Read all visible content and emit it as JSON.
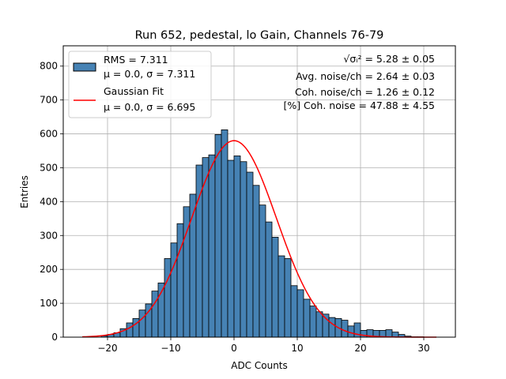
{
  "chart_data": {
    "type": "bar",
    "title": "Run 652, pedestal, lo Gain, Channels 76-79",
    "xlabel": "ADC Counts",
    "ylabel": "Entries",
    "xlim": [
      -27,
      35
    ],
    "ylim": [
      0,
      860
    ],
    "xticks": [
      -20,
      -10,
      0,
      10,
      20,
      30
    ],
    "yticks": [
      0,
      100,
      200,
      300,
      400,
      500,
      600,
      700,
      800
    ],
    "grid": true,
    "bin_edges_start": -21,
    "bin_width": 1,
    "histogram": {
      "name": "RMS = 7.311",
      "stats": "μ = 0.0, σ = 7.311",
      "color": "#4682b4",
      "edge_color": "#000000",
      "values": [
        4,
        8,
        13,
        25,
        42,
        55,
        80,
        98,
        136,
        160,
        232,
        278,
        335,
        385,
        422,
        508,
        530,
        538,
        598,
        612,
        522,
        535,
        518,
        487,
        448,
        390,
        340,
        295,
        240,
        232,
        152,
        140,
        112,
        92,
        75,
        68,
        58,
        55,
        50,
        33,
        42,
        20,
        22,
        20,
        20,
        22,
        15,
        8,
        3,
        1,
        1
      ]
    },
    "gaussian_fit": {
      "name": "Gaussian Fit",
      "stats": "μ = 0.0, σ = 6.695",
      "color": "#ff0000",
      "mu": 0.0,
      "sigma": 6.695,
      "amplitude": 580,
      "x_range": [
        -24,
        32
      ]
    },
    "legend_position": "top-left",
    "annotations": {
      "sigma_label": "√σᵢ² = 5.28 ± 0.05",
      "avg_noise": "Avg. noise/ch = 2.64 ± 0.03",
      "coh_noise": "Coh. noise/ch = 1.26 ± 0.12",
      "pct_coh_noise": "[%] Coh. noise = 47.88 ± 4.55"
    }
  }
}
